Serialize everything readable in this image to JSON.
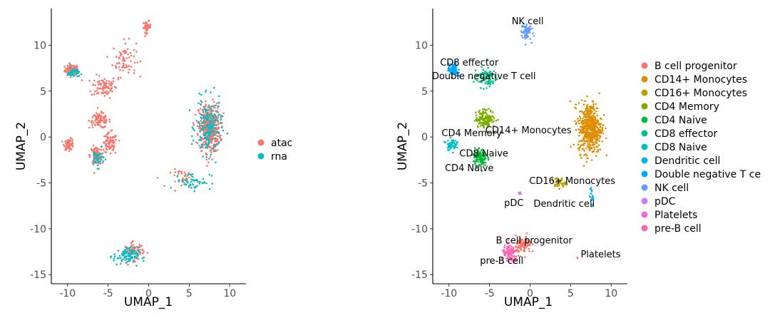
{
  "chart_data": [
    {
      "type": "scatter",
      "title": "",
      "xlabel": "UMAP_1",
      "ylabel": "UMAP_2",
      "xlim": [
        -12,
        12
      ],
      "ylim": [
        -16,
        14
      ],
      "xticks": [
        -10,
        -5,
        0,
        5,
        10
      ],
      "yticks": [
        -15,
        -10,
        -5,
        0,
        5,
        10
      ],
      "xtick_labels": [
        "-10",
        "-5",
        "0",
        "5",
        "10"
      ],
      "ytick_labels": [
        "-15",
        "-10",
        "-5",
        "0",
        "5",
        "10"
      ],
      "legend": {
        "position": "right",
        "entries": [
          {
            "name": "atac",
            "color": "#F8766D"
          },
          {
            "name": "rna",
            "color": "#00BFC4"
          }
        ]
      },
      "series": [
        {
          "name": "atac",
          "color": "#F8766D",
          "regions": [
            {
              "cx": -9.5,
              "cy": 7.3,
              "sx": 0.7,
              "sy": 0.5,
              "n": 90
            },
            {
              "cx": -5.5,
              "cy": 5.5,
              "sx": 1.3,
              "sy": 1.0,
              "n": 90
            },
            {
              "cx": -3.0,
              "cy": 8.5,
              "sx": 1.2,
              "sy": 1.6,
              "n": 70
            },
            {
              "cx": -0.2,
              "cy": 12.0,
              "sx": 0.4,
              "sy": 0.5,
              "n": 40
            },
            {
              "cx": -6.0,
              "cy": 1.8,
              "sx": 1.1,
              "sy": 0.7,
              "n": 90
            },
            {
              "cx": -4.8,
              "cy": -0.8,
              "sx": 0.8,
              "sy": 1.0,
              "n": 80
            },
            {
              "cx": -9.8,
              "cy": -0.8,
              "sx": 0.5,
              "sy": 0.5,
              "n": 60
            },
            {
              "cx": -6.5,
              "cy": -2.0,
              "sx": 0.6,
              "sy": 0.8,
              "n": 80
            },
            {
              "cx": 7.5,
              "cy": 1.0,
              "sx": 1.1,
              "sy": 2.2,
              "n": 450
            },
            {
              "cx": 4.5,
              "cy": -4.5,
              "sx": 1.5,
              "sy": 0.8,
              "n": 40
            },
            {
              "cx": -1.8,
              "cy": -12.5,
              "sx": 1.0,
              "sy": 0.8,
              "n": 80
            }
          ]
        },
        {
          "name": "rna",
          "color": "#00BFC4",
          "regions": [
            {
              "cx": -9.3,
              "cy": 7.0,
              "sx": 0.6,
              "sy": 0.4,
              "n": 40
            },
            {
              "cx": -6.3,
              "cy": -2.3,
              "sx": 0.7,
              "sy": 0.8,
              "n": 40
            },
            {
              "cx": 7.4,
              "cy": 1.0,
              "sx": 1.3,
              "sy": 2.5,
              "n": 180
            },
            {
              "cx": 5.5,
              "cy": -4.8,
              "sx": 1.8,
              "sy": 0.8,
              "n": 50
            },
            {
              "cx": -2.8,
              "cy": -13.0,
              "sx": 1.3,
              "sy": 0.8,
              "n": 90
            }
          ]
        }
      ]
    },
    {
      "type": "scatter",
      "title": "",
      "xlabel": "UMAP_1",
      "ylabel": "UMAP_2",
      "xlim": [
        -12,
        12
      ],
      "ylim": [
        -16,
        14
      ],
      "xticks": [
        -10,
        -5,
        0,
        5,
        10
      ],
      "yticks": [
        -15,
        -10,
        -5,
        0,
        5,
        10
      ],
      "xtick_labels": [
        "-10",
        "-5",
        "0",
        "5",
        "10"
      ],
      "ytick_labels": [
        "-15",
        "-10",
        "-5",
        "0",
        "5",
        "10"
      ],
      "legend": {
        "position": "right",
        "entries": [
          {
            "name": "B cell progenitor",
            "color": "#F8766D"
          },
          {
            "name": "CD14+ Monocytes",
            "color": "#DE8C00"
          },
          {
            "name": "CD16+ Monocytes",
            "color": "#B79F00"
          },
          {
            "name": "CD4 Memory",
            "color": "#7CAE00"
          },
          {
            "name": "CD4 Naive",
            "color": "#00BA38"
          },
          {
            "name": "CD8 effector",
            "color": "#00C08B"
          },
          {
            "name": "CD8 Naive",
            "color": "#00BFC4"
          },
          {
            "name": "Dendritic cell",
            "color": "#00B4F0"
          },
          {
            "name": "Double negative T ce",
            "color": "#00A9FF"
          },
          {
            "name": "NK cell",
            "color": "#619CFF"
          },
          {
            "name": "pDC",
            "color": "#C77CFF"
          },
          {
            "name": "Platelets",
            "color": "#F564E3"
          },
          {
            "name": "pre-B cell",
            "color": "#FF64B0"
          }
        ]
      },
      "series": [
        {
          "name": "CD14+ Monocytes",
          "color": "#DE8C00",
          "label": "CD14+ Monocytes",
          "label_at": [
            -0.2,
            0.7
          ],
          "regions": [
            {
              "cx": 7.4,
              "cy": 1.0,
              "sx": 1.2,
              "sy": 2.3,
              "n": 500
            }
          ]
        },
        {
          "name": "CD16+ Monocytes",
          "color": "#B79F00",
          "label": "CD16+ Monocytes",
          "label_at": [
            5.2,
            -4.8
          ],
          "regions": [
            {
              "cx": 3.5,
              "cy": -5.0,
              "sx": 0.7,
              "sy": 0.5,
              "n": 40
            }
          ]
        },
        {
          "name": "Dendritic cell",
          "color": "#00B4F0",
          "label": "Dendritic cell",
          "label_at": [
            4.2,
            -7.3
          ],
          "regions": [
            {
              "cx": 7.6,
              "cy": -6.5,
              "sx": 0.2,
              "sy": 0.7,
              "n": 20
            }
          ]
        },
        {
          "name": "NK cell",
          "color": "#619CFF",
          "label": "NK cell",
          "label_at": [
            -0.3,
            12.6
          ],
          "regions": [
            {
              "cx": -0.5,
              "cy": 11.5,
              "sx": 0.5,
              "sy": 0.8,
              "n": 70
            }
          ]
        },
        {
          "name": "CD8 effector",
          "color": "#00C08B",
          "label": "CD8 effector",
          "label_at": [
            -7.5,
            8.1
          ],
          "regions": [
            {
              "cx": -5.5,
              "cy": 6.5,
              "sx": 1.2,
              "sy": 0.9,
              "n": 90
            }
          ]
        },
        {
          "name": "Double negative T ce",
          "color": "#00A9FF",
          "label": "Double negative T cell",
          "label_at": [
            -5.7,
            6.6
          ],
          "regions": [
            {
              "cx": -9.5,
              "cy": 7.3,
              "sx": 0.5,
              "sy": 0.6,
              "n": 80
            }
          ]
        },
        {
          "name": "CD4 Memory",
          "color": "#7CAE00",
          "label": "CD4 Memory",
          "label_at": [
            -7.2,
            0.4
          ],
          "regions": [
            {
              "cx": -5.5,
              "cy": 2.0,
              "sx": 1.0,
              "sy": 0.8,
              "n": 150
            }
          ]
        },
        {
          "name": "CD8 Naive",
          "color": "#00BFC4",
          "label": "CD8 Naive",
          "label_at": [
            -5.7,
            -1.8
          ],
          "regions": [
            {
              "cx": -9.7,
              "cy": -0.8,
              "sx": 0.5,
              "sy": 0.5,
              "n": 60
            }
          ]
        },
        {
          "name": "CD4 Naive",
          "color": "#00BA38",
          "label": "CD4 Naive",
          "label_at": [
            -7.5,
            -3.4
          ],
          "regions": [
            {
              "cx": -6.2,
              "cy": -2.2,
              "sx": 0.7,
              "sy": 0.8,
              "n": 120
            }
          ]
        },
        {
          "name": "pDC",
          "color": "#C77CFF",
          "label": "pDC",
          "label_at": [
            -2.0,
            -7.2
          ],
          "regions": [
            {
              "cx": -1.3,
              "cy": -6.2,
              "sx": 0.15,
              "sy": 0.15,
              "n": 6
            }
          ]
        },
        {
          "name": "B cell progenitor",
          "color": "#F8766D",
          "label": "B cell progenitor",
          "label_at": [
            0.5,
            -11.3
          ],
          "regions": [
            {
              "cx": -0.8,
              "cy": -11.8,
              "sx": 0.8,
              "sy": 0.8,
              "n": 100
            }
          ]
        },
        {
          "name": "pre-B cell",
          "color": "#FF64B0",
          "label": "pre-B cell",
          "label_at": [
            -3.5,
            -13.5
          ],
          "regions": [
            {
              "cx": -2.5,
              "cy": -12.8,
              "sx": 0.8,
              "sy": 0.8,
              "n": 100
            }
          ]
        },
        {
          "name": "Platelets",
          "color": "#F564E3",
          "label": "Platelets",
          "label_at": [
            8.7,
            -12.8
          ],
          "regions": [
            {
              "cx": 5.8,
              "cy": -13.2,
              "sx": 0.1,
              "sy": 0.1,
              "n": 3
            }
          ]
        }
      ]
    }
  ]
}
